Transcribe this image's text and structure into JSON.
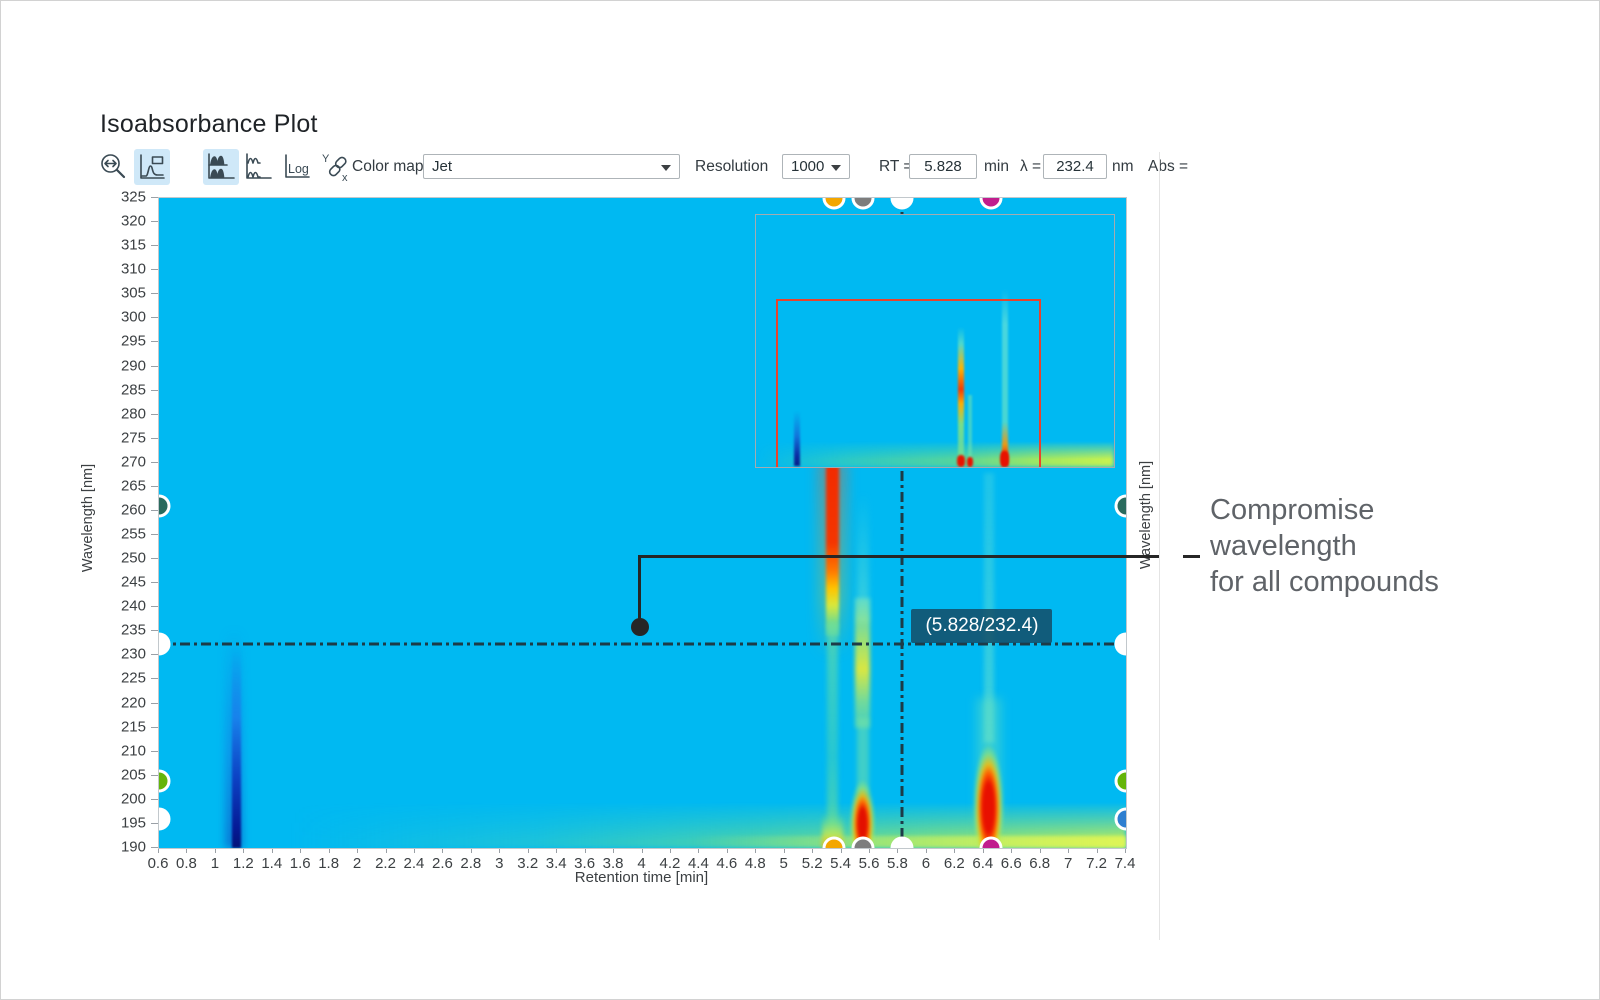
{
  "title": "Isoabsorbance Plot",
  "toolbar": {
    "colormap_label": "Color map",
    "colormap_value": "Jet",
    "resolution_label": "Resolution",
    "resolution_value": "1000",
    "rt_label": "RT =",
    "rt_value": "5.828",
    "rt_unit": "min",
    "lambda_label": "λ =",
    "lambda_value": "232.4",
    "lambda_unit": "nm",
    "abs_label": "Abs =",
    "log_icon_label": "Log",
    "unlink_icon_y": "Y",
    "unlink_icon_x": "x"
  },
  "crosshair_label": "(5.828/232.4)",
  "annotation": {
    "lines": [
      "Compromise",
      "wavelength",
      "for all compounds"
    ]
  },
  "chart_data": {
    "type": "heatmap",
    "title": "Isoabsorbance Plot",
    "xlabel": "Retention time [min]",
    "ylabel": "Wavelength [nm]",
    "ylabel_right": "Wavelength [nm]",
    "colormap": "Jet",
    "x_range": [
      0.6,
      7.4
    ],
    "y_range": [
      190,
      325
    ],
    "x_ticks": [
      "0.6",
      "0.8",
      "1",
      "1.2",
      "1.4",
      "1.6",
      "1.8",
      "2",
      "2.2",
      "2.4",
      "2.6",
      "2.8",
      "3",
      "3.2",
      "3.4",
      "3.6",
      "3.8",
      "4",
      "4.2",
      "4.4",
      "4.6",
      "4.8",
      "5",
      "5.2",
      "5.4",
      "5.6",
      "5.8",
      "6",
      "6.2",
      "6.4",
      "6.6",
      "6.8",
      "7",
      "7.2",
      "7.4"
    ],
    "y_ticks": [
      "325",
      "320",
      "315",
      "310",
      "305",
      "300",
      "295",
      "290",
      "285",
      "280",
      "275",
      "270",
      "265",
      "260",
      "255",
      "250",
      "245",
      "240",
      "235",
      "230",
      "225",
      "220",
      "215",
      "210",
      "205",
      "200",
      "195",
      "190"
    ],
    "background_level_color": "#00b9f2",
    "crosshair": {
      "rt_min": 5.828,
      "wavelength_nm": 232.4
    },
    "peaks": [
      {
        "rt_min": 1.15,
        "note": "dark blue negative band, strongest below ~215 nm"
      },
      {
        "rt_min": 5.35,
        "note": "intense red absorbance ~225-285 nm fading to green below"
      },
      {
        "rt_min": 5.55,
        "note": "moderate band ~225-250 nm with intense red spot near 195 nm"
      },
      {
        "rt_min": 6.45,
        "note": "weak band up to ~300 nm with intense red spot ~195-210 nm"
      }
    ],
    "edge_markers": {
      "top": [
        {
          "rt": 5.35,
          "color": "#F3A600"
        },
        {
          "rt": 5.55,
          "color": "#7D7D7D"
        },
        {
          "rt": 5.828,
          "color": "#FFFFFF"
        },
        {
          "rt": 6.45,
          "color": "#C11D8D"
        }
      ],
      "bottom": [
        {
          "rt": 5.35,
          "color": "#F3A600"
        },
        {
          "rt": 5.55,
          "color": "#7D7D7D"
        },
        {
          "rt": 5.828,
          "color": "#FFFFFF"
        },
        {
          "rt": 6.45,
          "color": "#C11D8D"
        }
      ],
      "left": [
        {
          "nm": 261,
          "color": "#2A6B5E"
        },
        {
          "nm": 232.4,
          "color": "#FFFFFF"
        },
        {
          "nm": 204,
          "color": "#64B50A"
        },
        {
          "nm": 196,
          "color": "#FFFFFF"
        }
      ],
      "right": [
        {
          "nm": 261,
          "color": "#2A6B5E"
        },
        {
          "nm": 232.4,
          "color": "#FFFFFF"
        },
        {
          "nm": 204,
          "color": "#64B50A"
        },
        {
          "nm": 196,
          "color": "#2E7FD0"
        }
      ]
    },
    "overview_inset": {
      "description": "thumbnail of full isoabsorbance map with zoom rectangle",
      "zoom_rect_color": "#e8432c",
      "border_color": "#a5abb0"
    }
  },
  "colors": {
    "plot_background": "#00b9f2",
    "crosshair": "#1d3b47",
    "crosshair_label_bg": "rgba(21,72,96,0.82)",
    "annotation_text": "#5f6368",
    "toolbar_highlight": "#cfe8f8"
  }
}
